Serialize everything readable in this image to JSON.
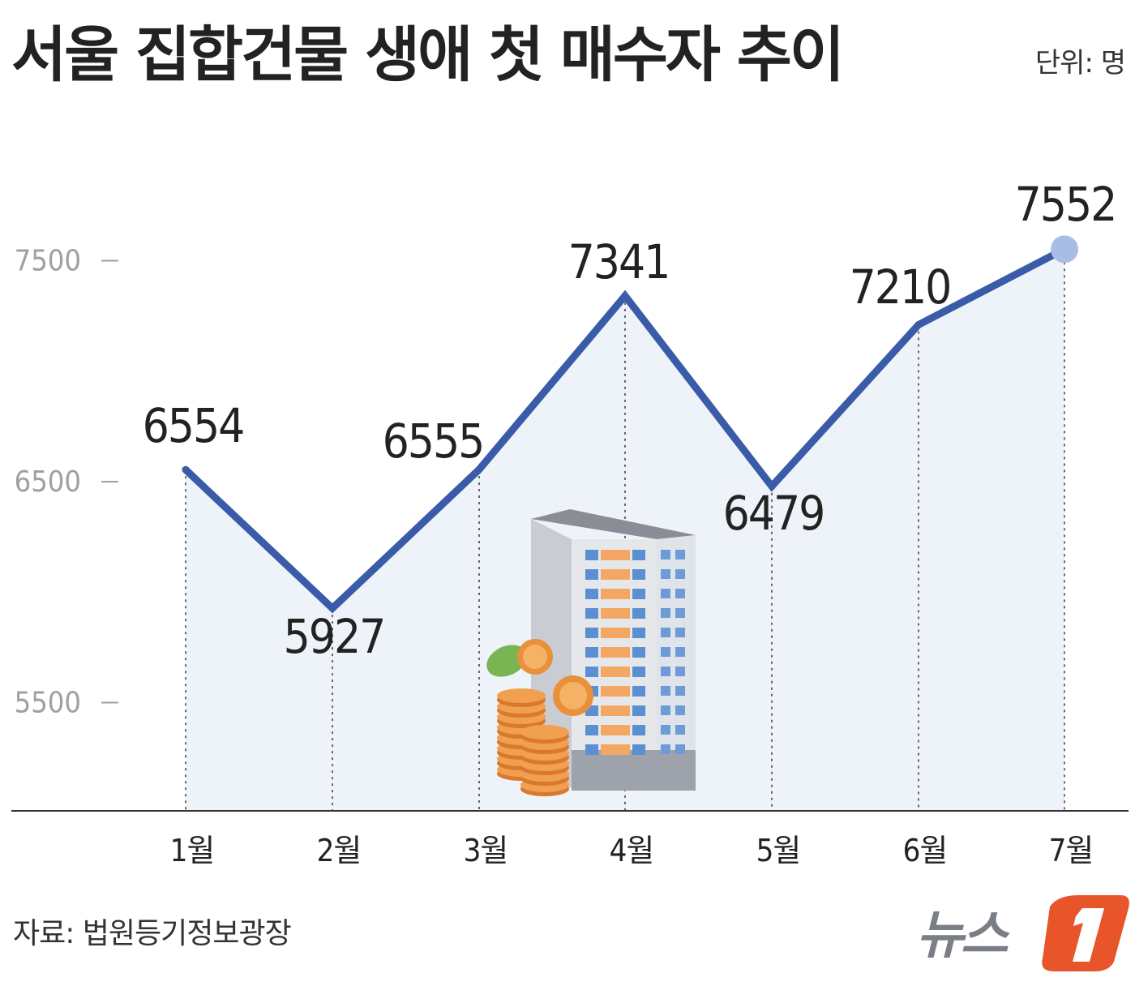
{
  "title": "서울 집합건물 생애 첫 매수자 추이",
  "unit": "단위: 명",
  "source": "자료: 법원등기정보광장",
  "logo": {
    "text": "뉴스",
    "mark": "1"
  },
  "colors": {
    "line": "#3a5ba8",
    "area": "#eef3fa",
    "marker": "#a9bde4",
    "tick_text": "#a0a0a0",
    "label_text": "#222222",
    "logo_orange": "#e8552a",
    "logo_gray": "#7a7f86"
  },
  "illustration": {
    "icon": "apartment-building-with-coins-icon"
  },
  "chart_data": {
    "type": "area",
    "title": "서울 집합건물 생애 첫 매수자 추이",
    "categories": [
      "1월",
      "2월",
      "3월",
      "4월",
      "5월",
      "6월",
      "7월"
    ],
    "values": [
      6554,
      5927,
      6555,
      7341,
      6479,
      7210,
      7552
    ],
    "data_labels": [
      "6554",
      "5927",
      "6555",
      "7341",
      "6479",
      "7210",
      "7552"
    ],
    "y_ticks": [
      7500,
      6500,
      5500
    ],
    "y_tick_labels": [
      "7500",
      "6500",
      "5500"
    ],
    "ylim": [
      5000,
      7800
    ],
    "xlabel": "",
    "ylabel": "",
    "grid": false,
    "legend": "none",
    "last_point_marker": true
  }
}
